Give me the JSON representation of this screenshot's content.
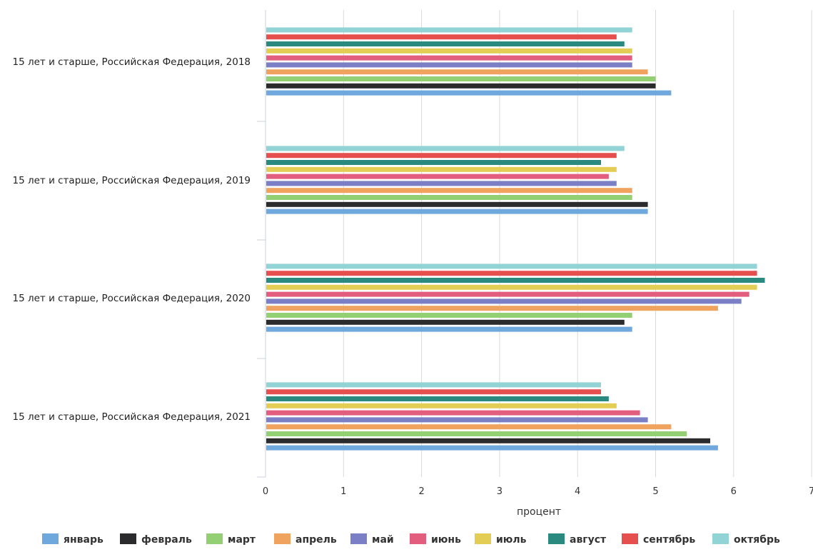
{
  "chart_data": {
    "type": "bar",
    "orientation": "horizontal",
    "categories": [
      "15 лет и старше, Российская Федерация, 2018",
      "15 лет и старше, Российская Федерация, 2019",
      "15 лет и старше, Российская Федерация, 2020",
      "15 лет и старше, Российская Федерация, 2021"
    ],
    "series": [
      {
        "name": "январь",
        "color": "#6fa8dc",
        "values": [
          5.2,
          4.9,
          4.7,
          5.8
        ]
      },
      {
        "name": "февраль",
        "color": "#2b2b2e",
        "values": [
          5.0,
          4.9,
          4.6,
          5.7
        ]
      },
      {
        "name": "март",
        "color": "#93d073",
        "values": [
          5.0,
          4.7,
          4.7,
          5.4
        ]
      },
      {
        "name": "апрель",
        "color": "#f0a35e",
        "values": [
          4.9,
          4.7,
          5.8,
          5.2
        ]
      },
      {
        "name": "май",
        "color": "#7b7fc6",
        "values": [
          4.7,
          4.5,
          6.1,
          4.9
        ]
      },
      {
        "name": "июнь",
        "color": "#e35d7f",
        "values": [
          4.7,
          4.4,
          6.2,
          4.8
        ]
      },
      {
        "name": "июль",
        "color": "#e3cd55",
        "values": [
          4.7,
          4.5,
          6.3,
          4.5
        ]
      },
      {
        "name": "август",
        "color": "#2b8a80",
        "values": [
          4.6,
          4.3,
          6.4,
          4.4
        ]
      },
      {
        "name": "сентябрь",
        "color": "#e5504f",
        "values": [
          4.5,
          4.5,
          6.3,
          4.3
        ]
      },
      {
        "name": "октябрь",
        "color": "#92d3d5",
        "values": [
          4.7,
          4.6,
          6.3,
          4.3
        ]
      }
    ],
    "xlabel": "процент",
    "xlim": [
      0,
      7
    ],
    "xticks": [
      "0",
      "1",
      "2",
      "3",
      "4",
      "5",
      "6",
      "7"
    ],
    "grid": true,
    "legend_position": "bottom"
  }
}
